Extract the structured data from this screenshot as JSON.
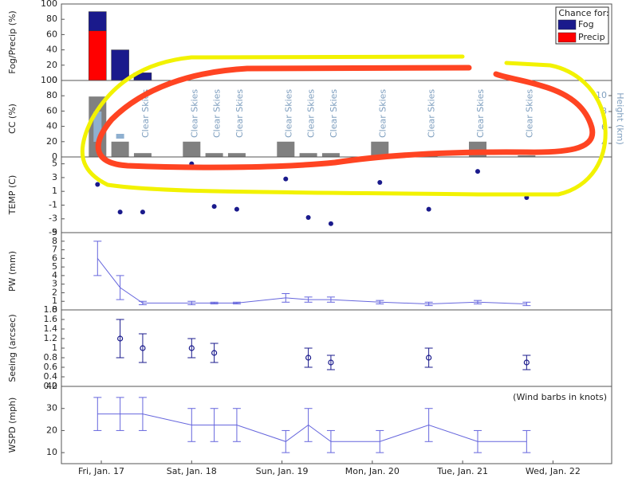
{
  "chart_data": [
    {
      "type": "bar",
      "ylabel": "Fog/Precip (%)",
      "x": [
        -1,
        5,
        11
      ],
      "series": [
        {
          "name": "Fog",
          "color": "#1a1a8c",
          "values": [
            25,
            40,
            10
          ]
        },
        {
          "name": "Precip",
          "color": "#ff0000",
          "values": [
            65,
            0,
            0
          ]
        }
      ],
      "legend": {
        "title": "Chance for:",
        "position": "upper right"
      },
      "xlim": [
        -10.6,
        135.6
      ],
      "ylim": [
        0,
        100
      ],
      "yticks": [
        0,
        20,
        40,
        60,
        80,
        100
      ]
    },
    {
      "type": "bar",
      "ylabel": "CC (%)",
      "y2label": "Height (km)",
      "x": [
        -1,
        5,
        11,
        24,
        30,
        36,
        49,
        55,
        61,
        74,
        87,
        100,
        113
      ],
      "values": [
        79,
        20,
        5,
        20,
        5,
        5,
        20,
        5,
        5,
        20,
        2,
        20,
        2
      ],
      "color": "#808080",
      "cloud_height": {
        "x": [
          -1,
          5
        ],
        "low": [
          4.2,
          4.6
        ],
        "high": [
          8,
          5.2
        ],
        "color": "#8fb0d0"
      },
      "annotations": [
        {
          "text": "Clear Skies",
          "x": 11
        },
        {
          "text": "Clear Skies",
          "x": 24
        },
        {
          "text": "Clear Skies",
          "x": 30
        },
        {
          "text": "Clear Skies",
          "x": 36
        },
        {
          "text": "Clear Skies",
          "x": 49
        },
        {
          "text": "Clear Skies",
          "x": 55
        },
        {
          "text": "Clear Skies",
          "x": 61
        },
        {
          "text": "Clear Skies",
          "x": 74
        },
        {
          "text": "Clear Skies",
          "x": 87
        },
        {
          "text": "Clear Skies",
          "x": 100
        },
        {
          "text": "Clear Skies",
          "x": 113
        }
      ],
      "annotation_color": "#7f9fbf",
      "xlim": [
        -10.6,
        135.6
      ],
      "ylim": [
        0,
        100
      ],
      "yticks": [
        0,
        20,
        40,
        60,
        80,
        100
      ],
      "y2lim": [
        2.3,
        11.9
      ],
      "y2ticks": [
        4,
        6,
        8,
        10
      ]
    },
    {
      "type": "scatter",
      "ylabel": "TEMP (C)",
      "x": [
        -1,
        5,
        11,
        24,
        30,
        36,
        49,
        55,
        61,
        74,
        87,
        100,
        113
      ],
      "values": [
        2,
        -2,
        -2,
        5,
        -1.2,
        -1.6,
        2.8,
        -2.8,
        -3.7,
        2.3,
        -1.6,
        3.9,
        0.1
      ],
      "color": "#1a1a8c",
      "xlim": [
        -10.6,
        135.6
      ],
      "ylim": [
        -5,
        6
      ],
      "yticks": [
        -5,
        -3,
        -1,
        1,
        3,
        5
      ]
    },
    {
      "type": "line",
      "ylabel": "PW (mm)",
      "x": [
        -1,
        5,
        11,
        24,
        30,
        36,
        49,
        55,
        61,
        74,
        87,
        100,
        113
      ],
      "values": [
        6,
        2.6,
        0.8,
        0.8,
        0.8,
        0.8,
        1.4,
        1.2,
        1.2,
        0.9,
        0.7,
        0.9,
        0.7
      ],
      "errors": [
        2,
        1.4,
        0.2,
        0.2,
        0.1,
        0.1,
        0.5,
        0.3,
        0.3,
        0.2,
        0.2,
        0.2,
        0.2
      ],
      "color": "#6666dd",
      "xlim": [
        -10.6,
        135.6
      ],
      "ylim": [
        0,
        9
      ],
      "yticks": [
        0,
        1,
        2,
        3,
        4,
        5,
        6,
        7,
        8,
        9
      ]
    },
    {
      "type": "scatter",
      "ylabel": "Seeing (arcsec)",
      "marker": "open",
      "x": [
        5,
        11,
        24,
        30,
        55,
        61,
        87,
        113
      ],
      "values": [
        1.2,
        1,
        1,
        0.9,
        0.8,
        0.7,
        0.8,
        0.7
      ],
      "errors": [
        0.4,
        0.3,
        0.2,
        0.2,
        0.2,
        0.15,
        0.2,
        0.15
      ],
      "color": "#1a1a8c",
      "xlim": [
        -10.6,
        135.6
      ],
      "ylim": [
        0.2,
        1.8
      ],
      "yticks": [
        0.2,
        0.4,
        0.6,
        0.8,
        1,
        1.2,
        1.4,
        1.6,
        1.8
      ]
    },
    {
      "type": "line",
      "ylabel": "WSPD (mph)",
      "note": "(Wind barbs in knots)",
      "x": [
        -1,
        5,
        11,
        24,
        30,
        36,
        49,
        55,
        61,
        74,
        87,
        100,
        113
      ],
      "values": [
        27.5,
        27.5,
        27.5,
        22.5,
        22.5,
        22.5,
        15,
        22.5,
        15,
        15,
        22.5,
        15,
        15
      ],
      "errors": [
        7.5,
        7.5,
        7.5,
        7.5,
        7.5,
        7.5,
        5,
        7.5,
        5,
        5,
        7.5,
        5,
        5
      ],
      "color": "#6666dd",
      "xlim": [
        -10.6,
        135.6
      ],
      "ylim": [
        5,
        40
      ],
      "yticks": [
        10,
        20,
        30,
        40
      ],
      "xticks": [
        {
          "value": 0,
          "label": "Fri, Jan. 17"
        },
        {
          "value": 24,
          "label": "Sat, Jan. 18"
        },
        {
          "value": 48,
          "label": "Sun, Jan. 19"
        },
        {
          "value": 72,
          "label": "Mon, Jan. 20"
        },
        {
          "value": 96,
          "label": "Tue, Jan. 21"
        },
        {
          "value": 120,
          "label": "Wed, Jan. 22"
        }
      ]
    }
  ]
}
